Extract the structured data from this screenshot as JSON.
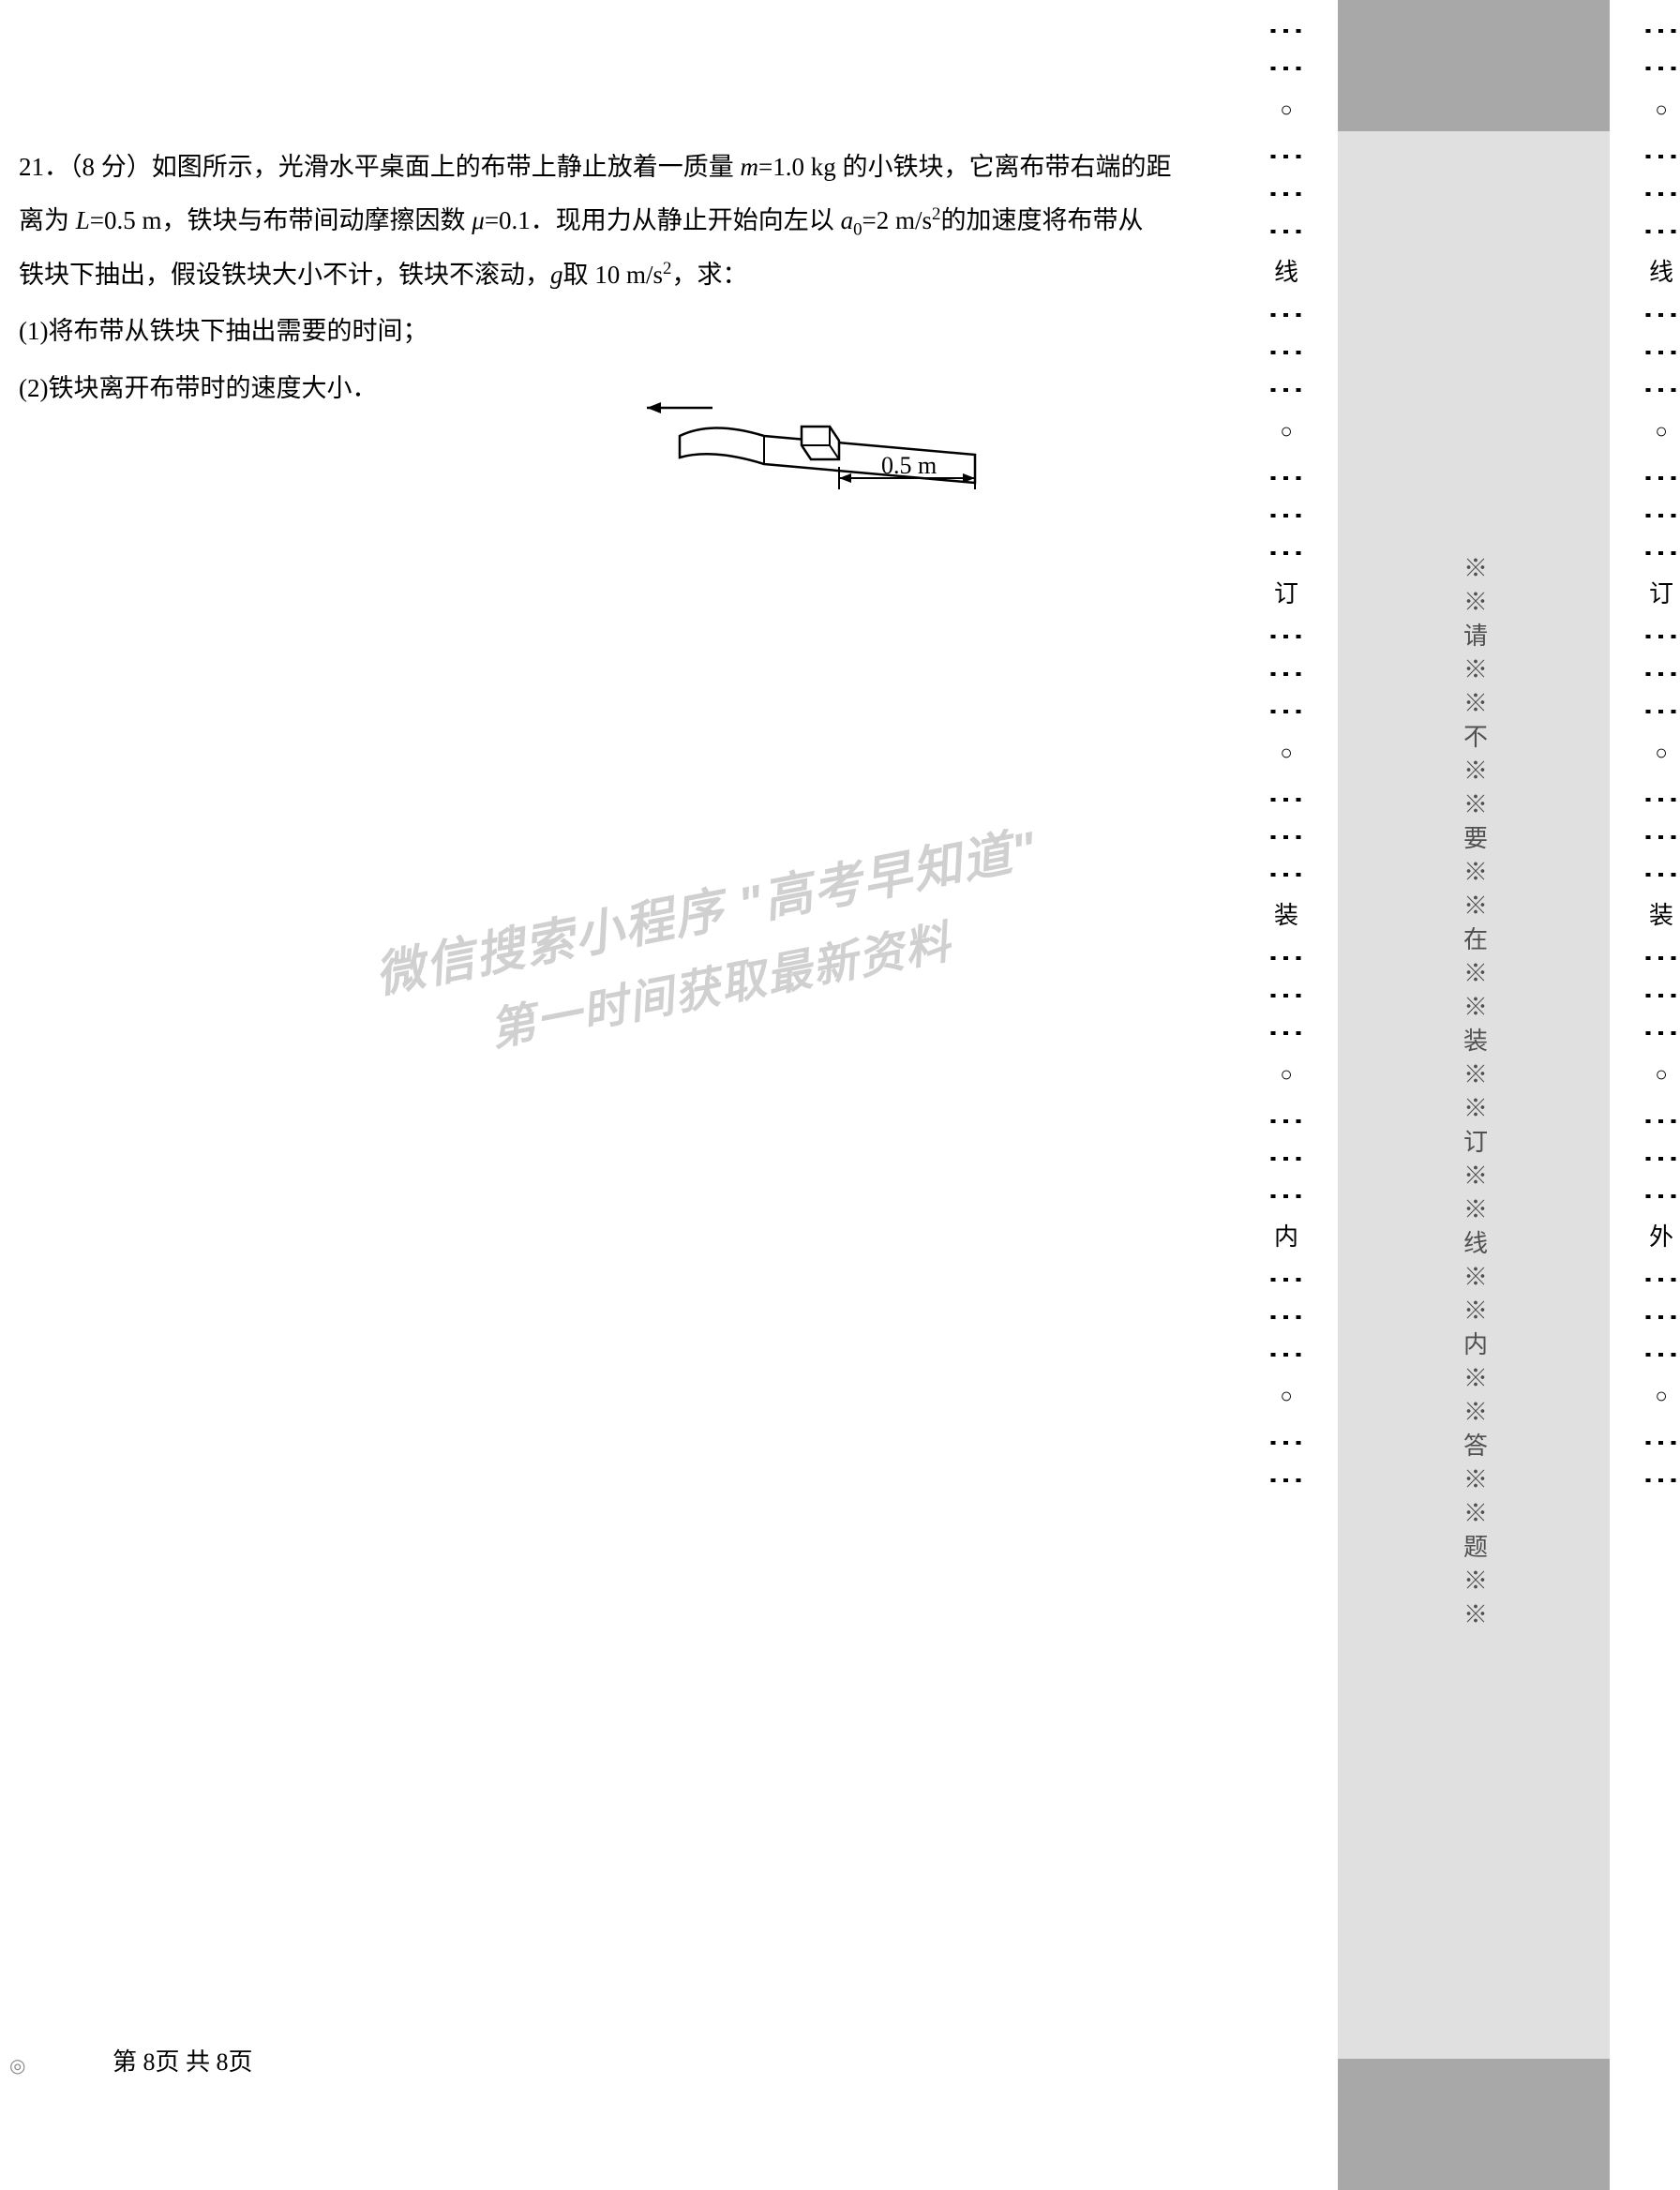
{
  "problem": {
    "number": "21．",
    "points": "（8 分）",
    "line1_a": "如图所示，光滑水平桌面上的布带上静止放着一质量 ",
    "m_var": "m",
    "m_val": "=1.0 kg 的小铁块，它离布带右端的距",
    "line2_a": "离为 ",
    "L_var": "L",
    "L_val": "=0.5 m，铁块与布带间动摩擦因数 ",
    "mu_var": "μ",
    "mu_val": "=0.1．现用力从静止开始向左以 ",
    "a_var": "a",
    "a_sub": "0",
    "a_val": "=2 m/s",
    "a_sup": "2",
    "line2_end": "的加速度将布带从",
    "line3_a": "铁块下抽出，假设铁块大小不计，铁块不滚动，",
    "g_var": "g",
    "g_val": "取 10 m/s",
    "g_sup": "2",
    "line3_end": "，求：",
    "sub1": "(1)将布带从铁块下抽出需要的时间；",
    "sub2": "(2)铁块离开布带时的速度大小．"
  },
  "figure": {
    "dimension_label": "0.5 m",
    "stroke_color": "#000000",
    "stroke_width": 2.5
  },
  "watermark": {
    "line1": "微信搜索小程序 \"高考早知道\"",
    "line2": "第一时间获取最新资料",
    "color": "#d0d0d0"
  },
  "footer": {
    "page_text": "第 8页 共 8页"
  },
  "binding": {
    "center_text": "※※请※※不※※要※※在※※装※※订※※线※※内※※答※※题※※",
    "left_markers": [
      "线",
      "订",
      "装",
      "内"
    ],
    "right_markers": [
      "线",
      "订",
      "装",
      "外"
    ],
    "colors": {
      "dark_grey": "#a8a8a8",
      "light_grey": "#e0e0e0",
      "text": "#505050"
    }
  }
}
